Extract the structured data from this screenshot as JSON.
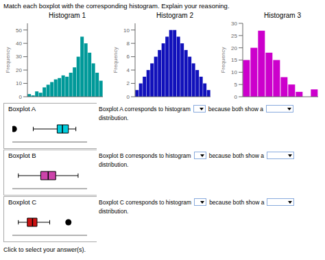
{
  "title": "Match each boxplot with the corresponding histogram. Explain your reasoning.",
  "annotations": [
    "Click to select your answer(s)."
  ],
  "chart_data": [
    {
      "type": "bar",
      "title": "Histogram 1",
      "color": "#009999",
      "categories": [
        null,
        null,
        null,
        null,
        null,
        null,
        null,
        null,
        null,
        null,
        null,
        null,
        null,
        null,
        null,
        null,
        null,
        null,
        null,
        null
      ],
      "values": [
        2,
        1,
        4,
        3,
        7,
        9,
        11,
        13,
        14,
        16,
        15,
        18,
        22,
        30,
        45,
        40,
        33,
        25,
        18,
        12
      ],
      "ylim": [
        0,
        55
      ],
      "yticks": [
        0,
        10,
        20,
        30,
        40,
        50
      ],
      "ylabel": "Frequency",
      "tick_labels": "y"
    },
    {
      "type": "bar",
      "title": "Histogram 2",
      "color": "#1111BB",
      "categories": [
        null,
        null,
        null,
        null,
        null,
        null,
        null,
        null,
        null,
        null,
        null,
        null,
        null,
        null,
        null,
        null,
        null,
        null,
        null,
        null
      ],
      "values": [
        1,
        2,
        3,
        4,
        5,
        6,
        7,
        8,
        9,
        10,
        10,
        9,
        8,
        7,
        6,
        5,
        4,
        3,
        2,
        1
      ],
      "ylim": [
        0,
        11
      ],
      "yticks": [
        0,
        2,
        4,
        6,
        8,
        10
      ],
      "ylabel": "Frequency",
      "tick_labels": "y"
    },
    {
      "type": "bar",
      "title": "Histogram 3",
      "color": "#CC00CC",
      "categories": [
        null,
        null,
        null,
        null,
        null,
        null,
        null,
        null,
        null,
        null
      ],
      "values": [
        15,
        20,
        27,
        18,
        15,
        8,
        5,
        2,
        0,
        3
      ],
      "ylim": [
        0,
        30
      ],
      "yticks": [
        0,
        5,
        10,
        15,
        20,
        25,
        30
      ],
      "ylabel": "Frequency",
      "tick_labels": "y"
    },
    {
      "type": "boxplot",
      "title": "Boxplot A",
      "color": "#00CCDD",
      "whisker_low": 28,
      "q1": 60,
      "median": 67,
      "q3": 75,
      "whisker_high": 85,
      "outliers": [
        2
      ],
      "xlim": [
        0,
        100
      ],
      "tick_labels": false,
      "annotations": [
        "Boxplot A corresponds to histogram",
        "because both show a",
        "distribution."
      ]
    },
    {
      "type": "boxplot",
      "title": "Boxplot B",
      "color": "#CC44AA",
      "whisker_low": 8,
      "q1": 38,
      "median": 48,
      "q3": 58,
      "whisker_high": 88,
      "outliers": [],
      "xlim": [
        0,
        100
      ],
      "tick_labels": false,
      "annotations": [
        "Boxplot B corresponds to histogram",
        "because both show a",
        "distribution."
      ]
    },
    {
      "type": "boxplot",
      "title": "Boxplot C",
      "color": "#CC1111",
      "whisker_low": 8,
      "q1": 20,
      "median": 27,
      "q3": 33,
      "whisker_high": 50,
      "outliers": [
        75
      ],
      "xlim": [
        0,
        100
      ],
      "tick_labels": false,
      "annotations": [
        "Boxplot C corresponds to histogram",
        "because both show a",
        "distribution."
      ]
    }
  ]
}
